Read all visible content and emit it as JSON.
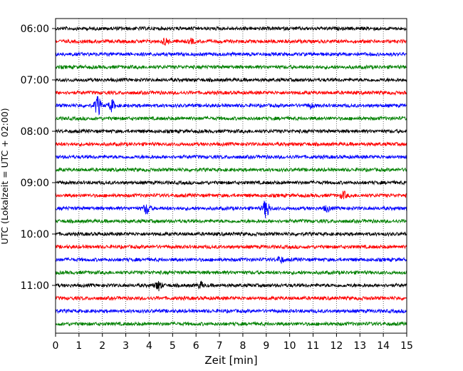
{
  "chart_data": {
    "type": "line",
    "title": "",
    "xlabel": "Zeit  [min]",
    "ylabel": "UTC (Lokalzeit = UTC + 02:00)",
    "xlim": [
      0,
      15
    ],
    "x_ticks": [
      0,
      1,
      2,
      3,
      4,
      5,
      6,
      7,
      8,
      9,
      10,
      11,
      12,
      13,
      14,
      15
    ],
    "y_ticks": [
      "06:00",
      "07:00",
      "08:00",
      "09:00",
      "10:00",
      "11:00"
    ],
    "grid": "vertical-dotted",
    "trace_colors": [
      "#000000",
      "#ff0000",
      "#0000ff",
      "#008000"
    ],
    "trace_count": 24,
    "trace_interval_min": 15,
    "events": [
      {
        "trace": 1,
        "x": 4.7,
        "amplitude": 0.35
      },
      {
        "trace": 1,
        "x": 5.8,
        "amplitude": 0.2
      },
      {
        "trace": 6,
        "x": 1.8,
        "amplitude": 1.0
      },
      {
        "trace": 6,
        "x": 2.4,
        "amplitude": 0.55
      },
      {
        "trace": 6,
        "x": 10.9,
        "amplitude": 0.2
      },
      {
        "trace": 13,
        "x": 12.3,
        "amplitude": 0.35
      },
      {
        "trace": 14,
        "x": 3.9,
        "amplitude": 0.6
      },
      {
        "trace": 14,
        "x": 9.0,
        "amplitude": 1.0
      },
      {
        "trace": 14,
        "x": 11.6,
        "amplitude": 0.3
      },
      {
        "trace": 18,
        "x": 9.6,
        "amplitude": 0.3
      },
      {
        "trace": 20,
        "x": 4.4,
        "amplitude": 0.5
      },
      {
        "trace": 20,
        "x": 6.2,
        "amplitude": 0.3
      }
    ]
  }
}
